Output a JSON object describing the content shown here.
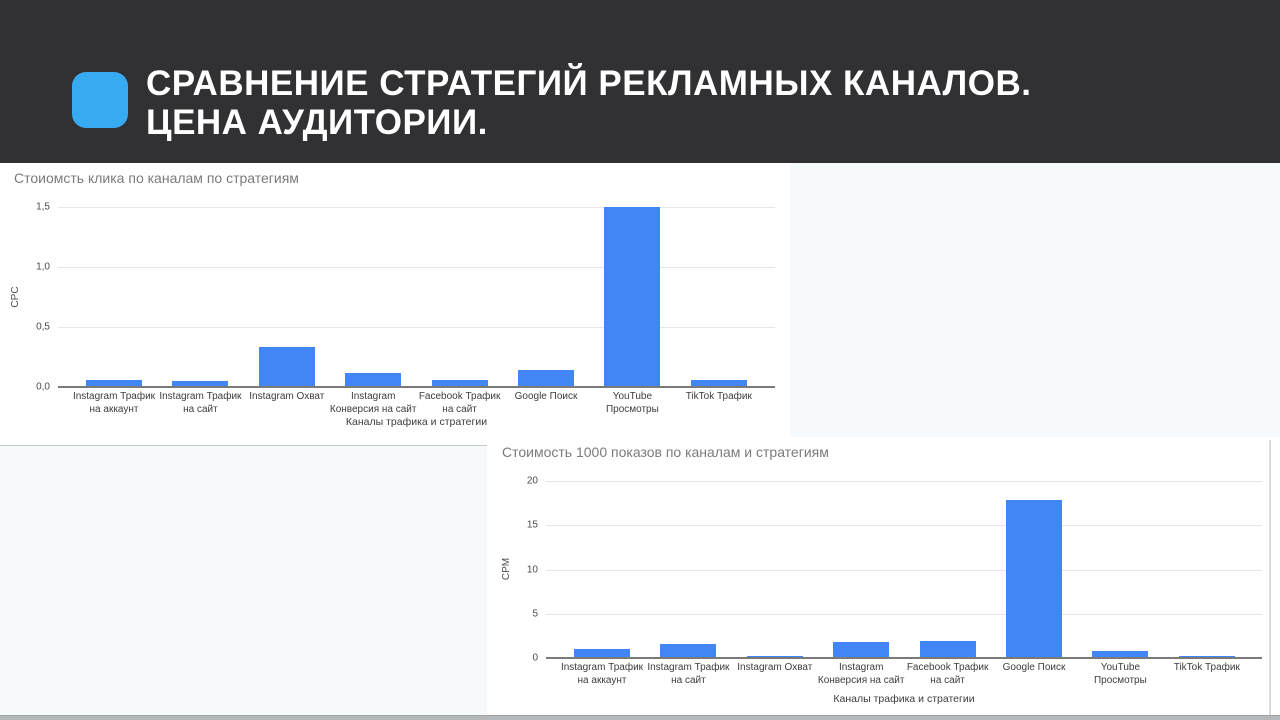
{
  "slide": {
    "title_line1": "СРАВНЕНИЕ СТРАТЕГИЙ РЕКЛАМНЫХ КАНАЛОВ.",
    "title_line2": "ЦЕНА АУДИТОРИИ.",
    "accent_color": "#38aaf2",
    "header_bg": "#313133"
  },
  "chart_data": [
    {
      "type": "bar",
      "title": "Стоиомсть клика по каналам по стратегиям",
      "xlabel": "Каналы трафика и стратегии",
      "ylabel": "CPC",
      "categories": [
        "Instagram Трафик\nна аккаунт",
        "Instagram Трафик\nна сайт",
        "Instagram Охват",
        "Instagram\nКонверсия на сайт",
        "Facebook Трафик\nна сайт",
        "Google Поиск",
        "YouTube\nПросмотры",
        "TikTok Трафик"
      ],
      "values": [
        0.06,
        0.05,
        0.33,
        0.12,
        0.06,
        0.14,
        1.5,
        0.06
      ],
      "ylim": [
        0,
        1.5
      ],
      "yticks": [
        {
          "v": 0,
          "label": "0,0"
        },
        {
          "v": 0.5,
          "label": "0,5"
        },
        {
          "v": 1,
          "label": "1,0"
        },
        {
          "v": 1.5,
          "label": "1,5"
        }
      ],
      "bar_color": "#4285f4",
      "grid": true,
      "legend": "none"
    },
    {
      "type": "bar",
      "title": "Стоимость 1000 показов по каналам и стратегиям",
      "xlabel": "Каналы трафика и стратегии",
      "ylabel": "CPM",
      "categories": [
        "Instagram Трафик\nна аккаунт",
        "Instagram Трафик\nна сайт",
        "Instagram Охват",
        "Instagram\nКонверсия на сайт",
        "Facebook Трафик\nна сайт",
        "Google Поиск",
        "YouTube\nПросмотры",
        "TikTok Трафик"
      ],
      "values": [
        1.0,
        1.6,
        0.2,
        1.8,
        1.9,
        17.8,
        0.8,
        0.25
      ],
      "ylim": [
        0,
        20
      ],
      "yticks": [
        {
          "v": 0,
          "label": "0"
        },
        {
          "v": 5,
          "label": "5"
        },
        {
          "v": 10,
          "label": "10"
        },
        {
          "v": 15,
          "label": "15"
        },
        {
          "v": 20,
          "label": "20"
        }
      ],
      "bar_color": "#4285f4",
      "grid": true,
      "legend": "none"
    }
  ]
}
